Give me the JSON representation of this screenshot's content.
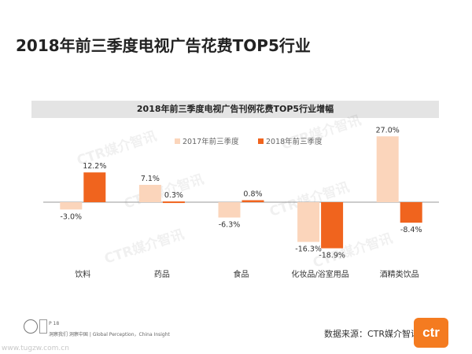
{
  "page": {
    "title": "2018年前三季度电视广告花费TOP5行业",
    "source": "数据来源：CTR媒介智讯",
    "footer_note": "洞察我们 洞察中国 | Global Perception，China Insight",
    "page_number": "P 18",
    "logo_text": "ctr",
    "site_mark": "www.tugzw.com.cn"
  },
  "chart_data": {
    "type": "bar",
    "title": "2018年前三季度电视广告刊例花费TOP5行业增幅",
    "categories": [
      "饮料",
      "药品",
      "食品",
      "化妆品/浴室用品",
      "酒精类饮品"
    ],
    "series": [
      {
        "name": "2017年前三季度",
        "values": [
          -3.0,
          7.1,
          -6.3,
          -16.3,
          27.0
        ],
        "labels": [
          "-3.0%",
          "7.1%",
          "-6.3%",
          "-16.3%",
          "27.0%"
        ]
      },
      {
        "name": "2018年前三季度",
        "values": [
          12.2,
          0.3,
          0.8,
          -18.9,
          -8.4
        ],
        "labels": [
          "12.2%",
          "0.3%",
          "0.8%",
          "-18.9%",
          "-8.4%"
        ]
      }
    ],
    "ylim": [
      -20,
      30
    ],
    "legend_position": "top-center",
    "grid": false,
    "colors": {
      "s0": "#fbd5bb",
      "s1": "#f0641e"
    },
    "watermark": "CTR媒介智讯"
  }
}
